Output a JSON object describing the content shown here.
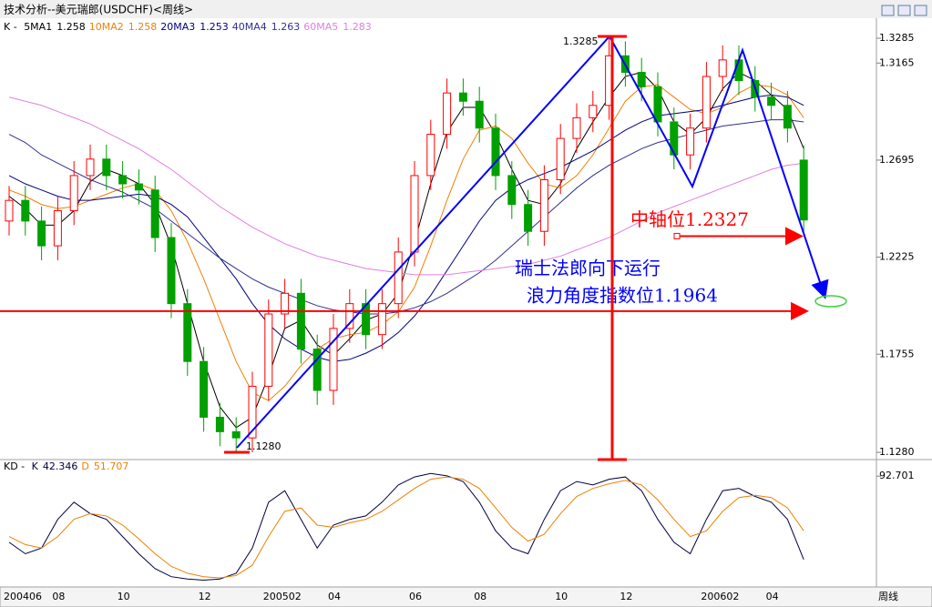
{
  "window": {
    "title": "技术分析--美元瑞郎(USDCHF)<周线>"
  },
  "chart_data": [
    {
      "type": "candlestick",
      "legend_prefix": "K - ",
      "categories": [
        "200406",
        null,
        null,
        "08",
        null,
        null,
        null,
        "10",
        null,
        null,
        null,
        null,
        "12",
        null,
        null,
        null,
        "200502",
        null,
        null,
        null,
        "04",
        null,
        null,
        null,
        null,
        "06",
        null,
        null,
        null,
        "08",
        null,
        null,
        null,
        null,
        "10",
        null,
        null,
        null,
        "12",
        null,
        null,
        null,
        null,
        "200602",
        null,
        null,
        null,
        "04",
        null,
        null
      ],
      "open": [
        1.24,
        1.25,
        1.24,
        1.228,
        1.245,
        1.262,
        1.27,
        1.262,
        1.258,
        1.255,
        1.232,
        1.2,
        1.172,
        1.145,
        1.138,
        1.135,
        1.16,
        1.195,
        1.205,
        1.178,
        1.158,
        1.188,
        1.2,
        1.185,
        1.2,
        1.225,
        1.262,
        1.282,
        1.302,
        1.298,
        1.285,
        1.262,
        1.248,
        1.235,
        1.26,
        1.28,
        1.29,
        1.296,
        1.32,
        1.312,
        1.305,
        1.288,
        1.272,
        1.285,
        1.31,
        1.318,
        1.308,
        1.3,
        1.296,
        1.2695
      ],
      "high": [
        1.257,
        1.257,
        1.247,
        1.252,
        1.269,
        1.277,
        1.277,
        1.269,
        1.265,
        1.262,
        1.239,
        1.207,
        1.179,
        1.152,
        1.145,
        1.167,
        1.202,
        1.212,
        1.212,
        1.185,
        1.195,
        1.207,
        1.207,
        1.207,
        1.232,
        1.269,
        1.289,
        1.309,
        1.309,
        1.305,
        1.292,
        1.269,
        1.255,
        1.267,
        1.287,
        1.297,
        1.303,
        1.3285,
        1.327,
        1.319,
        1.312,
        1.295,
        1.292,
        1.317,
        1.325,
        1.325,
        1.315,
        1.307,
        1.303,
        1.2765
      ],
      "low": [
        1.233,
        1.233,
        1.221,
        1.221,
        1.238,
        1.255,
        1.255,
        1.251,
        1.248,
        1.225,
        1.193,
        1.165,
        1.138,
        1.131,
        1.128,
        1.128,
        1.153,
        1.188,
        1.171,
        1.151,
        1.151,
        1.181,
        1.178,
        1.178,
        1.193,
        1.218,
        1.255,
        1.275,
        1.291,
        1.278,
        1.255,
        1.241,
        1.228,
        1.228,
        1.253,
        1.273,
        1.283,
        1.289,
        1.305,
        1.298,
        1.281,
        1.265,
        1.265,
        1.278,
        1.303,
        1.301,
        1.293,
        1.289,
        1.278,
        1.2335
      ],
      "close": [
        1.25,
        1.24,
        1.228,
        1.245,
        1.262,
        1.27,
        1.262,
        1.258,
        1.255,
        1.232,
        1.2,
        1.172,
        1.145,
        1.138,
        1.135,
        1.16,
        1.195,
        1.205,
        1.178,
        1.158,
        1.188,
        1.2,
        1.185,
        1.2,
        1.225,
        1.262,
        1.282,
        1.302,
        1.298,
        1.285,
        1.262,
        1.248,
        1.235,
        1.26,
        1.28,
        1.29,
        1.296,
        1.32,
        1.312,
        1.305,
        1.288,
        1.272,
        1.285,
        1.31,
        1.318,
        1.308,
        1.3,
        1.296,
        1.285,
        1.2405
      ],
      "up_color": "#ff0000",
      "down_color": "#00a000",
      "series": [
        {
          "name": "5MA1",
          "color": "#000000",
          "legend_value": 1.258,
          "values": [
            1.252,
            1.246,
            1.238,
            1.238,
            1.245,
            1.259,
            1.265,
            1.262,
            1.258,
            1.248,
            1.228,
            1.2,
            1.172,
            1.15,
            1.14,
            1.145,
            1.165,
            1.188,
            1.192,
            1.18,
            1.175,
            1.183,
            1.192,
            1.195,
            1.205,
            1.23,
            1.258,
            1.283,
            1.295,
            1.295,
            1.282,
            1.265,
            1.25,
            1.248,
            1.258,
            1.275,
            1.288,
            1.3,
            1.31,
            1.312,
            1.304,
            1.288,
            1.282,
            1.29,
            1.304,
            1.312,
            1.308,
            1.301,
            1.294,
            1.275
          ]
        },
        {
          "name": "10MA2",
          "color": "#f08000",
          "legend_value": 1.258,
          "values": [
            1.255,
            1.252,
            1.248,
            1.246,
            1.247,
            1.25,
            1.253,
            1.256,
            1.258,
            1.255,
            1.245,
            1.23,
            1.212,
            1.192,
            1.172,
            1.157,
            1.153,
            1.16,
            1.17,
            1.178,
            1.183,
            1.185,
            1.186,
            1.19,
            1.196,
            1.208,
            1.228,
            1.25,
            1.27,
            1.284,
            1.286,
            1.28,
            1.268,
            1.258,
            1.256,
            1.262,
            1.272,
            1.285,
            1.298,
            1.305,
            1.306,
            1.3,
            1.294,
            1.292,
            1.295,
            1.302,
            1.306,
            1.305,
            1.301,
            1.29
          ]
        },
        {
          "name": "20MA3",
          "color": "#000080",
          "legend_value": 1.253,
          "values": [
            1.262,
            1.258,
            1.255,
            1.252,
            1.25,
            1.25,
            1.251,
            1.252,
            1.253,
            1.252,
            1.248,
            1.242,
            1.232,
            1.222,
            1.212,
            1.2,
            1.19,
            1.183,
            1.178,
            1.174,
            1.172,
            1.173,
            1.176,
            1.18,
            1.186,
            1.194,
            1.204,
            1.216,
            1.228,
            1.24,
            1.25,
            1.256,
            1.26,
            1.263,
            1.266,
            1.27,
            1.274,
            1.279,
            1.284,
            1.288,
            1.291,
            1.292,
            1.293,
            1.294,
            1.296,
            1.298,
            1.3,
            1.301,
            1.3,
            1.296
          ]
        },
        {
          "name": "40MA4",
          "color": "#303090",
          "legend_value": 1.263,
          "values": [
            1.282,
            1.278,
            1.272,
            1.268,
            1.264,
            1.26,
            1.257,
            1.254,
            1.25,
            1.246,
            1.24,
            1.234,
            1.228,
            1.222,
            1.217,
            1.212,
            1.208,
            1.205,
            1.202,
            1.199,
            1.197,
            1.196,
            1.195,
            1.195,
            1.196,
            1.198,
            1.201,
            1.205,
            1.21,
            1.215,
            1.221,
            1.228,
            1.235,
            1.242,
            1.249,
            1.256,
            1.262,
            1.267,
            1.271,
            1.275,
            1.278,
            1.28,
            1.282,
            1.284,
            1.286,
            1.287,
            1.288,
            1.289,
            1.289,
            1.288
          ]
        },
        {
          "name": "60MA5",
          "color": "#e080e0",
          "legend_value": 1.283,
          "values": [
            1.3,
            1.298,
            1.296,
            1.293,
            1.29,
            1.287,
            1.283,
            1.279,
            1.275,
            1.27,
            1.265,
            1.259,
            1.253,
            1.247,
            1.242,
            1.237,
            1.233,
            1.229,
            1.226,
            1.223,
            1.221,
            1.219,
            1.217,
            1.216,
            1.215,
            1.214,
            1.214,
            1.214,
            1.215,
            1.216,
            1.217,
            1.218,
            1.219,
            1.221,
            1.223,
            1.226,
            1.229,
            1.232,
            1.236,
            1.24,
            1.244,
            1.247,
            1.25,
            1.253,
            1.256,
            1.259,
            1.262,
            1.265,
            1.267,
            1.268
          ]
        }
      ],
      "ylim": [
        1.1245,
        1.3338
      ],
      "yticks": [
        {
          "value": 1.128,
          "label": "1.1280"
        },
        1.1755,
        1.2225,
        1.2695,
        1.3165,
        1.3285
      ],
      "extremes": [
        {
          "value": 1.3285,
          "label": "1.3285"
        },
        {
          "value": 1.128,
          "label": "1.1280"
        }
      ],
      "line_color": "#ff0000",
      "levels": [
        {
          "value": 1.2327,
          "label": "中轴位1.2327",
          "color": "#ff0000"
        },
        {
          "value": 1.1964,
          "label": "浪力角度指数位1.1964",
          "color": "#0000ff"
        }
      ],
      "note": "瑞士法郎向下运行",
      "note_color": "#0000ff"
    },
    {
      "type": "line",
      "legend_prefix": "KD - ",
      "xlabel": "周线",
      "series": [
        {
          "name": "K",
          "color": "#000040",
          "legend_value": 42.346,
          "values": [
            35,
            25,
            30,
            55,
            70,
            60,
            55,
            40,
            25,
            12,
            5,
            3,
            2,
            3,
            8,
            30,
            70,
            80,
            55,
            30,
            50,
            55,
            58,
            70,
            85,
            92,
            95,
            93,
            88,
            70,
            45,
            30,
            25,
            55,
            80,
            88,
            85,
            90,
            92,
            80,
            55,
            35,
            25,
            55,
            80,
            82,
            75,
            70,
            55,
            20
          ]
        },
        {
          "name": "D",
          "color": "#f08000",
          "legend_value": 51.707,
          "values": [
            40,
            33,
            30,
            40,
            55,
            60,
            58,
            50,
            38,
            25,
            14,
            8,
            5,
            4,
            6,
            15,
            40,
            62,
            65,
            50,
            48,
            52,
            55,
            62,
            72,
            82,
            90,
            92,
            90,
            82,
            65,
            48,
            36,
            42,
            60,
            75,
            82,
            86,
            89,
            85,
            72,
            55,
            40,
            45,
            62,
            74,
            76,
            74,
            65,
            45
          ]
        }
      ],
      "ylim": [
        0,
        100
      ],
      "yticks": [
        92.701
      ]
    }
  ]
}
